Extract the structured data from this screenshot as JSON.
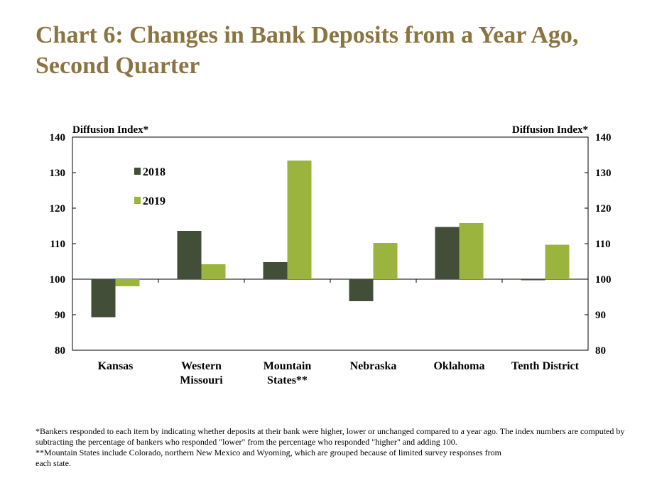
{
  "title_line1": "Chart 6: Changes in Bank Deposits from a Year Ago,",
  "title_line2": "Second Quarter",
  "colors": {
    "title": "#8a7440",
    "series_2018": "#434e38",
    "series_2019": "#9bb43e"
  },
  "chart_data": {
    "type": "bar",
    "categories": [
      [
        "Kansas"
      ],
      [
        "Western",
        "Missouri"
      ],
      [
        "Mountain",
        "States**"
      ],
      [
        "Nebraska"
      ],
      [
        "Oklahoma"
      ],
      [
        "Tenth District"
      ]
    ],
    "series": [
      {
        "name": "2018",
        "values": [
          89.3,
          113.6,
          104.8,
          93.8,
          114.7,
          99.7
        ]
      },
      {
        "name": "2019",
        "values": [
          98.0,
          104.2,
          133.4,
          110.2,
          115.8,
          109.7
        ]
      }
    ],
    "baseline": 100,
    "ylabel_left": "Diffusion Index*",
    "ylabel_right": "Diffusion Index*",
    "ylim": [
      80,
      140
    ],
    "yticks": [
      80,
      90,
      100,
      110,
      120,
      130,
      140
    ],
    "legend_position": "top-left",
    "grid": false
  },
  "footnotes": [
    "*Bankers responded to each item by indicating whether deposits at their bank were higher, lower or unchanged compared to a year ago.  The index numbers are computed by subtracting the percentage of bankers who responded \"lower\" from the percentage who responded \"higher\" and adding 100.",
    "**Mountain States include Colorado, northern New Mexico and Wyoming, which are grouped because of limited survey responses from each state."
  ]
}
